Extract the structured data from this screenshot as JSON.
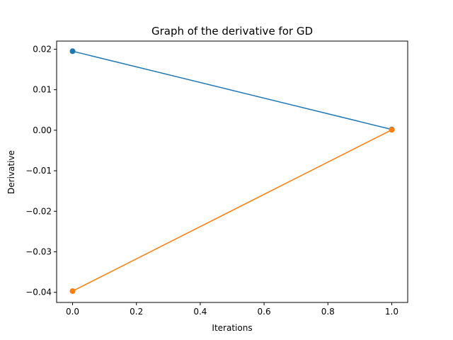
{
  "chart_data": {
    "type": "line",
    "title": "Graph of the derivative for GD",
    "xlabel": "Iterations",
    "ylabel": "Derivative",
    "xlim": [
      -0.05,
      1.05
    ],
    "ylim": [
      -0.0425,
      0.022
    ],
    "xticks": [
      0.0,
      0.2,
      0.4,
      0.6,
      0.8,
      1.0
    ],
    "xtick_labels": [
      "0.0",
      "0.2",
      "0.4",
      "0.6",
      "0.8",
      "1.0"
    ],
    "yticks": [
      -0.04,
      -0.03,
      -0.02,
      -0.01,
      0.0,
      0.01,
      0.02
    ],
    "ytick_labels": [
      "−0.04",
      "−0.03",
      "−0.02",
      "−0.01",
      "0.00",
      "0.01",
      "0.02"
    ],
    "grid": false,
    "legend": "none",
    "series": [
      {
        "x": [
          0,
          1
        ],
        "y": [
          0.0195,
          0.0002
        ],
        "color": "#1f77b4",
        "marker": "circle"
      },
      {
        "x": [
          0,
          1
        ],
        "y": [
          -0.0397,
          0.0001
        ],
        "color": "#ff7f0e",
        "marker": "circle"
      }
    ]
  }
}
